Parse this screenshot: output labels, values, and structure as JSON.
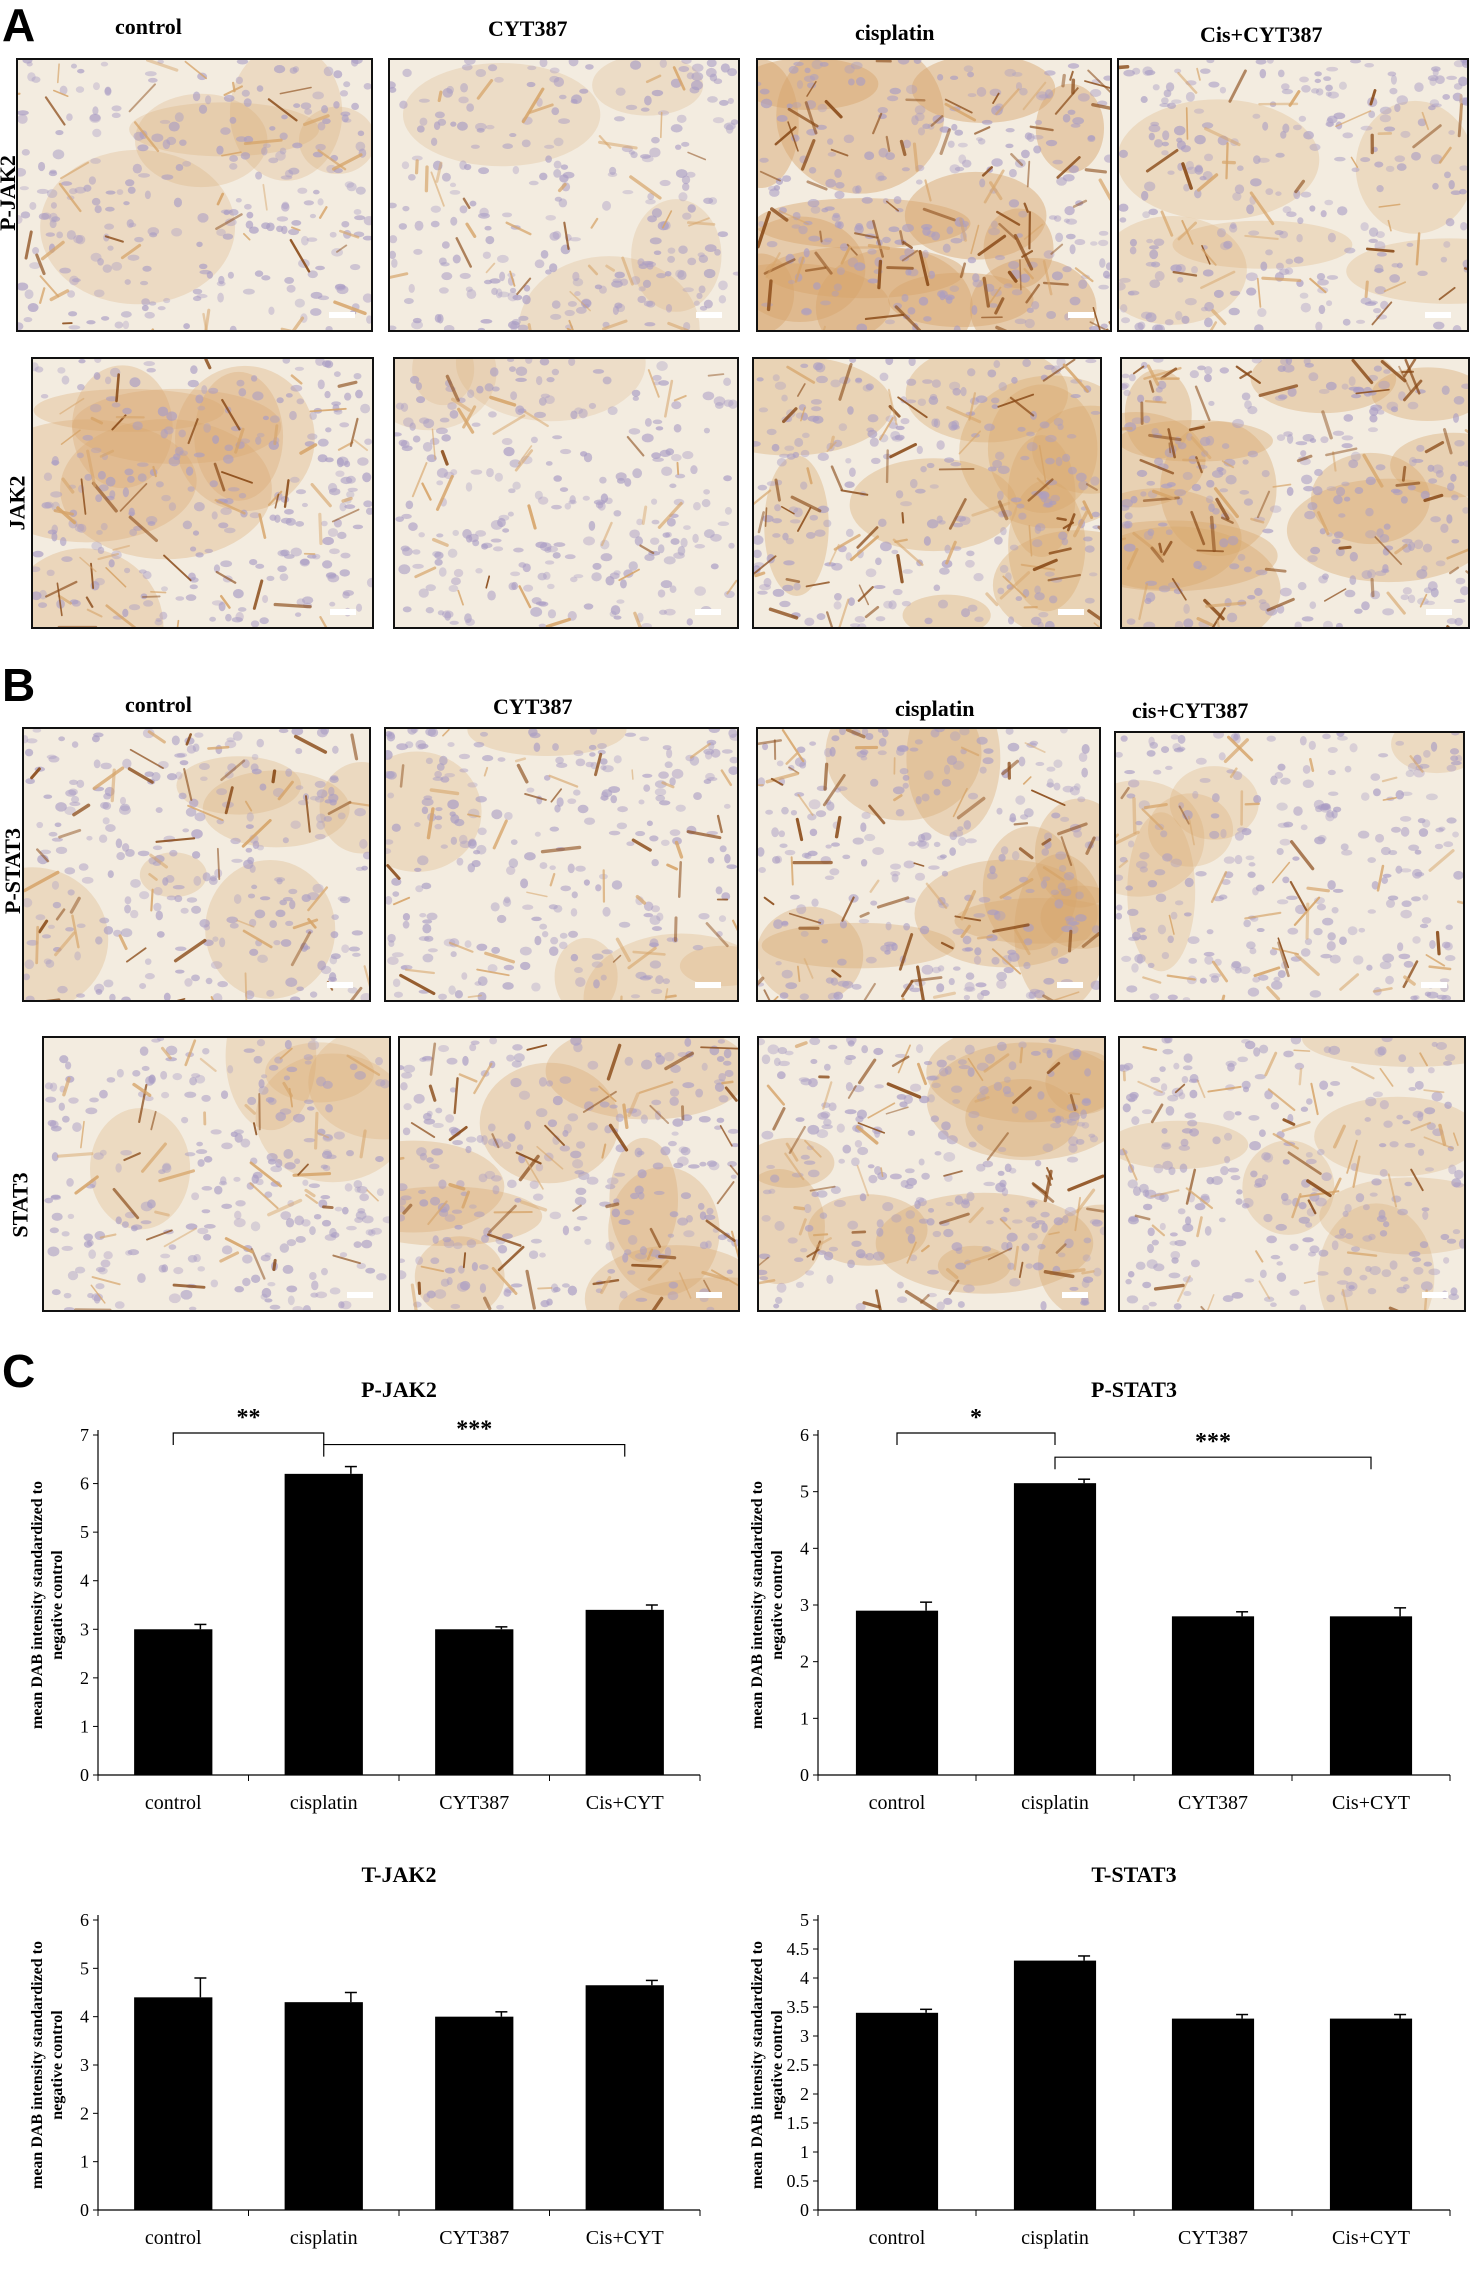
{
  "panel_a": {
    "letter": "A",
    "columns": [
      "control",
      "CYT387",
      "cisplatin",
      "Cis+CYT387"
    ],
    "rows": [
      "P-JAK2",
      "JAK2"
    ]
  },
  "panel_b": {
    "letter": "B",
    "columns": [
      "control",
      "CYT387",
      "cisplatin",
      "cis+CYT387"
    ],
    "rows": [
      "P-STAT3",
      "STAT3"
    ]
  },
  "panel_c": {
    "letter": "C"
  },
  "stain_colors": {
    "background": "#f3ece0",
    "nuclei": "#a99cc4",
    "dab_light": "#d7a56a",
    "dab_dark": "#8a4a17"
  },
  "chart_data": [
    {
      "type": "bar",
      "title": "P-JAK2",
      "ylabel": "mean DAB intensity standardized to negative control",
      "categories": [
        "control",
        "cisplatin",
        "CYT387",
        "Cis+CYT"
      ],
      "values": [
        3.0,
        6.2,
        3.0,
        3.4
      ],
      "errors": [
        0.1,
        0.15,
        0.05,
        0.1
      ],
      "ylim": [
        0,
        7
      ],
      "yticks": [
        0,
        1,
        2,
        3,
        4,
        5,
        6,
        7
      ],
      "significance": [
        {
          "from": 0,
          "to": 1,
          "label": "**"
        },
        {
          "from": 1,
          "to": 3,
          "label": "***"
        }
      ]
    },
    {
      "type": "bar",
      "title": "P-STAT3",
      "ylabel": "mean DAB intensity standardized to negative control",
      "categories": [
        "control",
        "cisplatin",
        "CYT387",
        "Cis+CYT"
      ],
      "values": [
        2.9,
        5.15,
        2.8,
        2.8
      ],
      "errors": [
        0.15,
        0.07,
        0.08,
        0.15
      ],
      "ylim": [
        0,
        6
      ],
      "yticks": [
        0,
        1,
        2,
        3,
        4,
        5,
        6
      ],
      "significance": [
        {
          "from": 0,
          "to": 1,
          "label": "*"
        },
        {
          "from": 1,
          "to": 3,
          "label": "***"
        }
      ]
    },
    {
      "type": "bar",
      "title": "T-JAK2",
      "ylabel": "mean DAB intensity standardized to negative control",
      "categories": [
        "control",
        "cisplatin",
        "CYT387",
        "Cis+CYT"
      ],
      "values": [
        4.4,
        4.3,
        4.0,
        4.65
      ],
      "errors": [
        0.4,
        0.2,
        0.1,
        0.1
      ],
      "ylim": [
        0,
        6
      ],
      "yticks": [
        0,
        1,
        2,
        3,
        4,
        5,
        6
      ],
      "significance": []
    },
    {
      "type": "bar",
      "title": "T-STAT3",
      "ylabel": "mean DAB intensity standardized to negative control",
      "categories": [
        "control",
        "cisplatin",
        "CYT387",
        "Cis+CYT"
      ],
      "values": [
        3.4,
        4.3,
        3.3,
        3.3
      ],
      "errors": [
        0.06,
        0.08,
        0.07,
        0.07
      ],
      "ylim": [
        0,
        5
      ],
      "yticks": [
        0,
        0.5,
        1,
        1.5,
        2,
        2.5,
        3,
        3.5,
        4,
        4.5,
        5
      ],
      "significance": []
    }
  ]
}
